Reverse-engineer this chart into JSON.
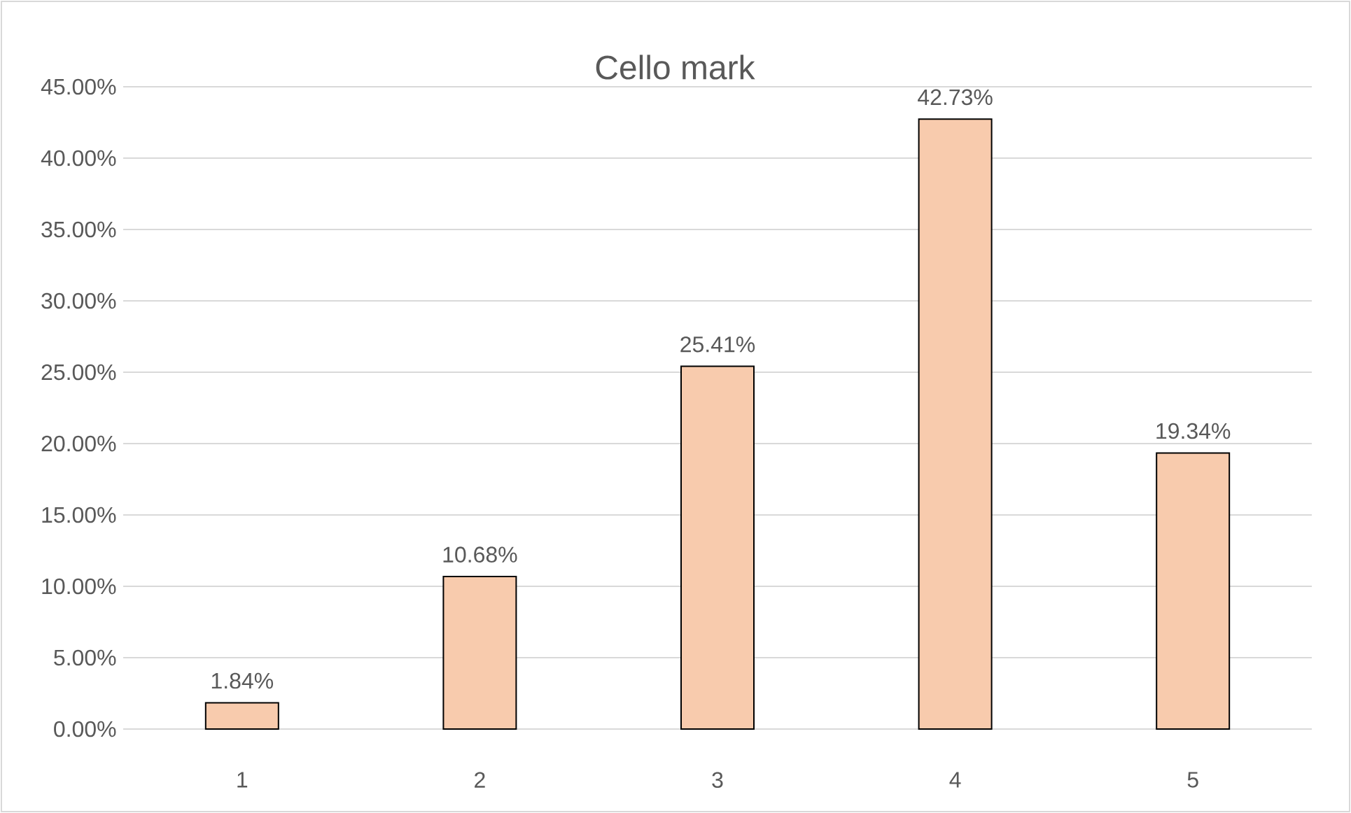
{
  "chart_data": {
    "type": "bar",
    "title": "Cello mark",
    "categories": [
      "1",
      "2",
      "3",
      "4",
      "5"
    ],
    "values": [
      1.84,
      10.68,
      25.41,
      42.73,
      19.34
    ],
    "value_labels": [
      "1.84%",
      "10.68%",
      "25.41%",
      "42.73%",
      "19.34%"
    ],
    "color": "#f8cbad",
    "ylim": [
      0,
      45
    ],
    "yticks": [
      {
        "value": 0,
        "label": "0.00%"
      },
      {
        "value": 5,
        "label": "5.00%"
      },
      {
        "value": 10,
        "label": "10.00%"
      },
      {
        "value": 15,
        "label": "15.00%"
      },
      {
        "value": 20,
        "label": "20.00%"
      },
      {
        "value": 25,
        "label": "25.00%"
      },
      {
        "value": 30,
        "label": "30.00%"
      },
      {
        "value": 35,
        "label": "35.00%"
      },
      {
        "value": 40,
        "label": "40.00%"
      },
      {
        "value": 45,
        "label": "45.00%"
      }
    ],
    "grid": "y"
  }
}
